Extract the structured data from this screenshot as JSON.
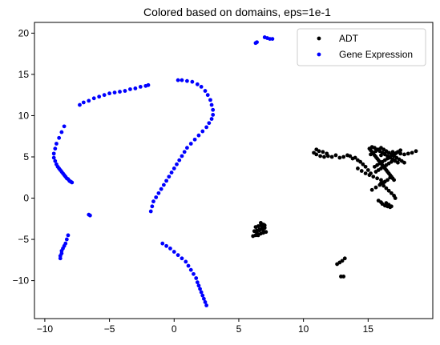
{
  "chart_data": {
    "type": "scatter",
    "title": "Colored based on domains, eps=1e-1",
    "xlabel": "",
    "ylabel": "",
    "xlim": [
      -10.8,
      20.0
    ],
    "ylim": [
      -14.6,
      21.3
    ],
    "xticks": [
      -10,
      -5,
      0,
      5,
      10,
      15
    ],
    "yticks": [
      -10,
      -5,
      0,
      5,
      10,
      15,
      20
    ],
    "grid": false,
    "legend": {
      "placement": "top-right",
      "entries": [
        "ADT",
        "Gene Expression"
      ]
    },
    "series": [
      {
        "name": "ADT",
        "color": "#000000",
        "x": [
          6.1,
          6.3,
          6.5,
          6.7,
          6.9,
          7.1,
          6.2,
          6.4,
          6.6,
          6.8,
          7.0,
          6.3,
          6.5,
          6.7,
          6.9,
          6.4,
          6.6,
          6.8,
          7.0,
          6.5,
          6.7,
          6.9,
          12.6,
          12.8,
          13.0,
          13.2,
          12.9,
          13.1,
          10.8,
          11.0,
          11.3,
          11.6,
          11.9,
          12.2,
          12.5,
          12.8,
          13.1,
          13.4,
          13.6,
          13.8,
          14.0,
          14.2,
          14.4,
          14.6,
          14.8,
          15.0,
          15.2,
          11.0,
          11.2,
          11.5,
          11.8,
          15.1,
          15.2,
          15.3,
          15.4,
          15.5,
          15.6,
          15.7,
          15.8,
          15.9,
          16.0,
          16.1,
          16.2,
          16.3,
          16.4,
          16.5,
          16.6,
          16.7,
          16.8,
          16.9,
          17.0,
          15.3,
          15.5,
          15.7,
          15.9,
          16.1,
          16.3,
          16.5,
          16.7,
          16.9,
          17.1,
          17.3,
          15.2,
          15.4,
          15.6,
          15.8,
          16.0,
          16.2,
          16.4,
          16.6,
          16.8,
          17.0,
          17.2,
          17.4,
          17.6,
          17.8,
          15.5,
          15.7,
          15.9,
          16.1,
          16.3,
          16.5,
          16.7,
          16.9,
          17.1,
          17.3,
          17.5,
          15.6,
          15.8,
          16.0,
          16.2,
          16.4,
          16.6,
          16.8,
          17.0,
          16.0,
          16.3,
          16.6,
          16.9,
          17.2,
          17.5,
          17.8,
          18.1,
          18.4,
          18.7,
          14.2,
          14.5,
          14.8,
          15.1,
          15.4,
          15.7,
          16.0,
          16.3,
          16.0,
          16.2,
          16.4,
          16.6,
          16.8,
          17.0,
          17.1,
          15.8,
          16.0,
          16.1,
          16.3,
          16.5,
          16.7,
          16.8,
          16.6,
          16.4,
          15.3,
          15.6,
          15.9,
          16.2,
          16.5,
          16.7
        ],
        "y": [
          -4.6,
          -4.5,
          -4.4,
          -4.3,
          -4.2,
          -4.1,
          -4.0,
          -3.9,
          -3.8,
          -3.7,
          -3.6,
          -3.5,
          -3.4,
          -3.3,
          -3.2,
          -4.2,
          -3.9,
          -3.6,
          -3.3,
          -4.5,
          -3.0,
          -4.0,
          -8.0,
          -7.8,
          -7.6,
          -7.3,
          -9.5,
          -9.5,
          5.5,
          5.3,
          5.1,
          5.0,
          5.1,
          5.0,
          5.2,
          4.9,
          5.0,
          5.2,
          5.1,
          4.8,
          4.9,
          4.6,
          4.4,
          4.1,
          3.8,
          3.4,
          3.0,
          5.9,
          5.7,
          5.6,
          5.4,
          6.0,
          5.8,
          5.6,
          5.4,
          5.2,
          5.0,
          4.8,
          4.6,
          4.4,
          4.2,
          4.0,
          3.8,
          3.6,
          3.4,
          3.2,
          3.0,
          2.8,
          2.6,
          2.4,
          2.2,
          6.2,
          6.1,
          5.9,
          5.7,
          5.5,
          5.3,
          5.1,
          4.9,
          4.7,
          4.5,
          4.3,
          5.3,
          5.5,
          5.7,
          5.9,
          6.1,
          5.9,
          5.7,
          5.5,
          5.3,
          5.1,
          4.9,
          4.7,
          4.5,
          4.3,
          3.8,
          4.0,
          4.2,
          4.4,
          4.6,
          4.8,
          5.0,
          5.2,
          5.4,
          5.6,
          5.8,
          3.2,
          3.4,
          3.6,
          3.8,
          4.0,
          4.2,
          4.4,
          4.6,
          5.2,
          5.4,
          5.5,
          5.6,
          5.5,
          5.4,
          5.3,
          5.4,
          5.5,
          5.7,
          3.6,
          3.3,
          3.0,
          2.8,
          2.6,
          2.4,
          2.2,
          2.0,
          1.8,
          1.5,
          1.2,
          0.9,
          0.6,
          0.3,
          0.0,
          -0.3,
          -0.5,
          -0.7,
          -0.9,
          -1.0,
          -1.1,
          -1.0,
          -0.8,
          -0.6,
          1.0,
          1.3,
          1.6,
          1.9,
          2.2,
          2.5
        ]
      },
      {
        "name": "Gene Expression",
        "color": "#0000ff",
        "x": [
          -8.5,
          -8.7,
          -8.9,
          -9.1,
          -9.2,
          -9.3,
          -9.3,
          -9.2,
          -9.1,
          -9.0,
          -8.9,
          -8.8,
          -8.7,
          -8.6,
          -8.5,
          -8.4,
          -8.3,
          -8.2,
          -8.1,
          -8.0,
          -7.9,
          -7.3,
          -7.0,
          -6.6,
          -6.2,
          -5.8,
          -5.4,
          -5.0,
          -4.6,
          -4.2,
          -3.8,
          -3.4,
          -3.0,
          -2.6,
          -2.2,
          -2.0,
          0.3,
          0.6,
          1.0,
          1.4,
          1.8,
          2.1,
          2.4,
          2.6,
          2.8,
          2.9,
          3.0,
          3.0,
          2.9,
          2.7,
          2.5,
          2.2,
          1.9,
          1.6,
          1.3,
          1.0,
          0.8,
          0.6,
          0.4,
          0.2,
          0.0,
          -0.2,
          -0.4,
          -0.6,
          -0.8,
          -1.0,
          -1.2,
          -1.4,
          -1.6,
          -1.7,
          -1.8,
          -0.9,
          -0.6,
          -0.3,
          0.0,
          0.3,
          0.6,
          0.9,
          1.1,
          1.3,
          1.5,
          1.7,
          1.8,
          1.9,
          2.0,
          2.1,
          2.2,
          2.3,
          2.4,
          2.5,
          -8.2,
          -8.3,
          -8.4,
          -8.5,
          -8.6,
          -8.7,
          -8.7,
          -8.8,
          -8.8,
          -6.6,
          -6.5,
          6.3,
          6.4,
          7.0,
          7.2,
          7.4,
          7.6
        ],
        "y": [
          8.7,
          8.0,
          7.3,
          6.6,
          6.0,
          5.4,
          4.9,
          4.5,
          4.1,
          3.8,
          3.6,
          3.4,
          3.2,
          3.0,
          2.8,
          2.6,
          2.4,
          2.3,
          2.1,
          2.0,
          1.9,
          11.3,
          11.6,
          11.8,
          12.1,
          12.3,
          12.5,
          12.7,
          12.8,
          12.9,
          13.0,
          13.2,
          13.3,
          13.5,
          13.6,
          13.7,
          14.3,
          14.3,
          14.2,
          14.1,
          13.8,
          13.5,
          13.0,
          12.5,
          11.9,
          11.3,
          10.7,
          10.1,
          9.6,
          9.1,
          8.6,
          8.1,
          7.6,
          7.1,
          6.6,
          6.1,
          5.6,
          5.1,
          4.6,
          4.1,
          3.6,
          3.1,
          2.6,
          2.1,
          1.6,
          1.1,
          0.6,
          0.1,
          -0.4,
          -1.0,
          -1.6,
          -5.5,
          -5.8,
          -6.1,
          -6.5,
          -6.9,
          -7.3,
          -7.7,
          -8.2,
          -8.7,
          -9.2,
          -9.7,
          -10.2,
          -10.6,
          -11.0,
          -11.4,
          -11.8,
          -12.2,
          -12.6,
          -13.0,
          -4.5,
          -5.0,
          -5.5,
          -5.8,
          -6.1,
          -6.4,
          -6.7,
          -7.0,
          -7.3,
          -2.0,
          -2.1,
          18.8,
          18.9,
          19.5,
          19.4,
          19.3,
          19.3
        ]
      }
    ]
  }
}
